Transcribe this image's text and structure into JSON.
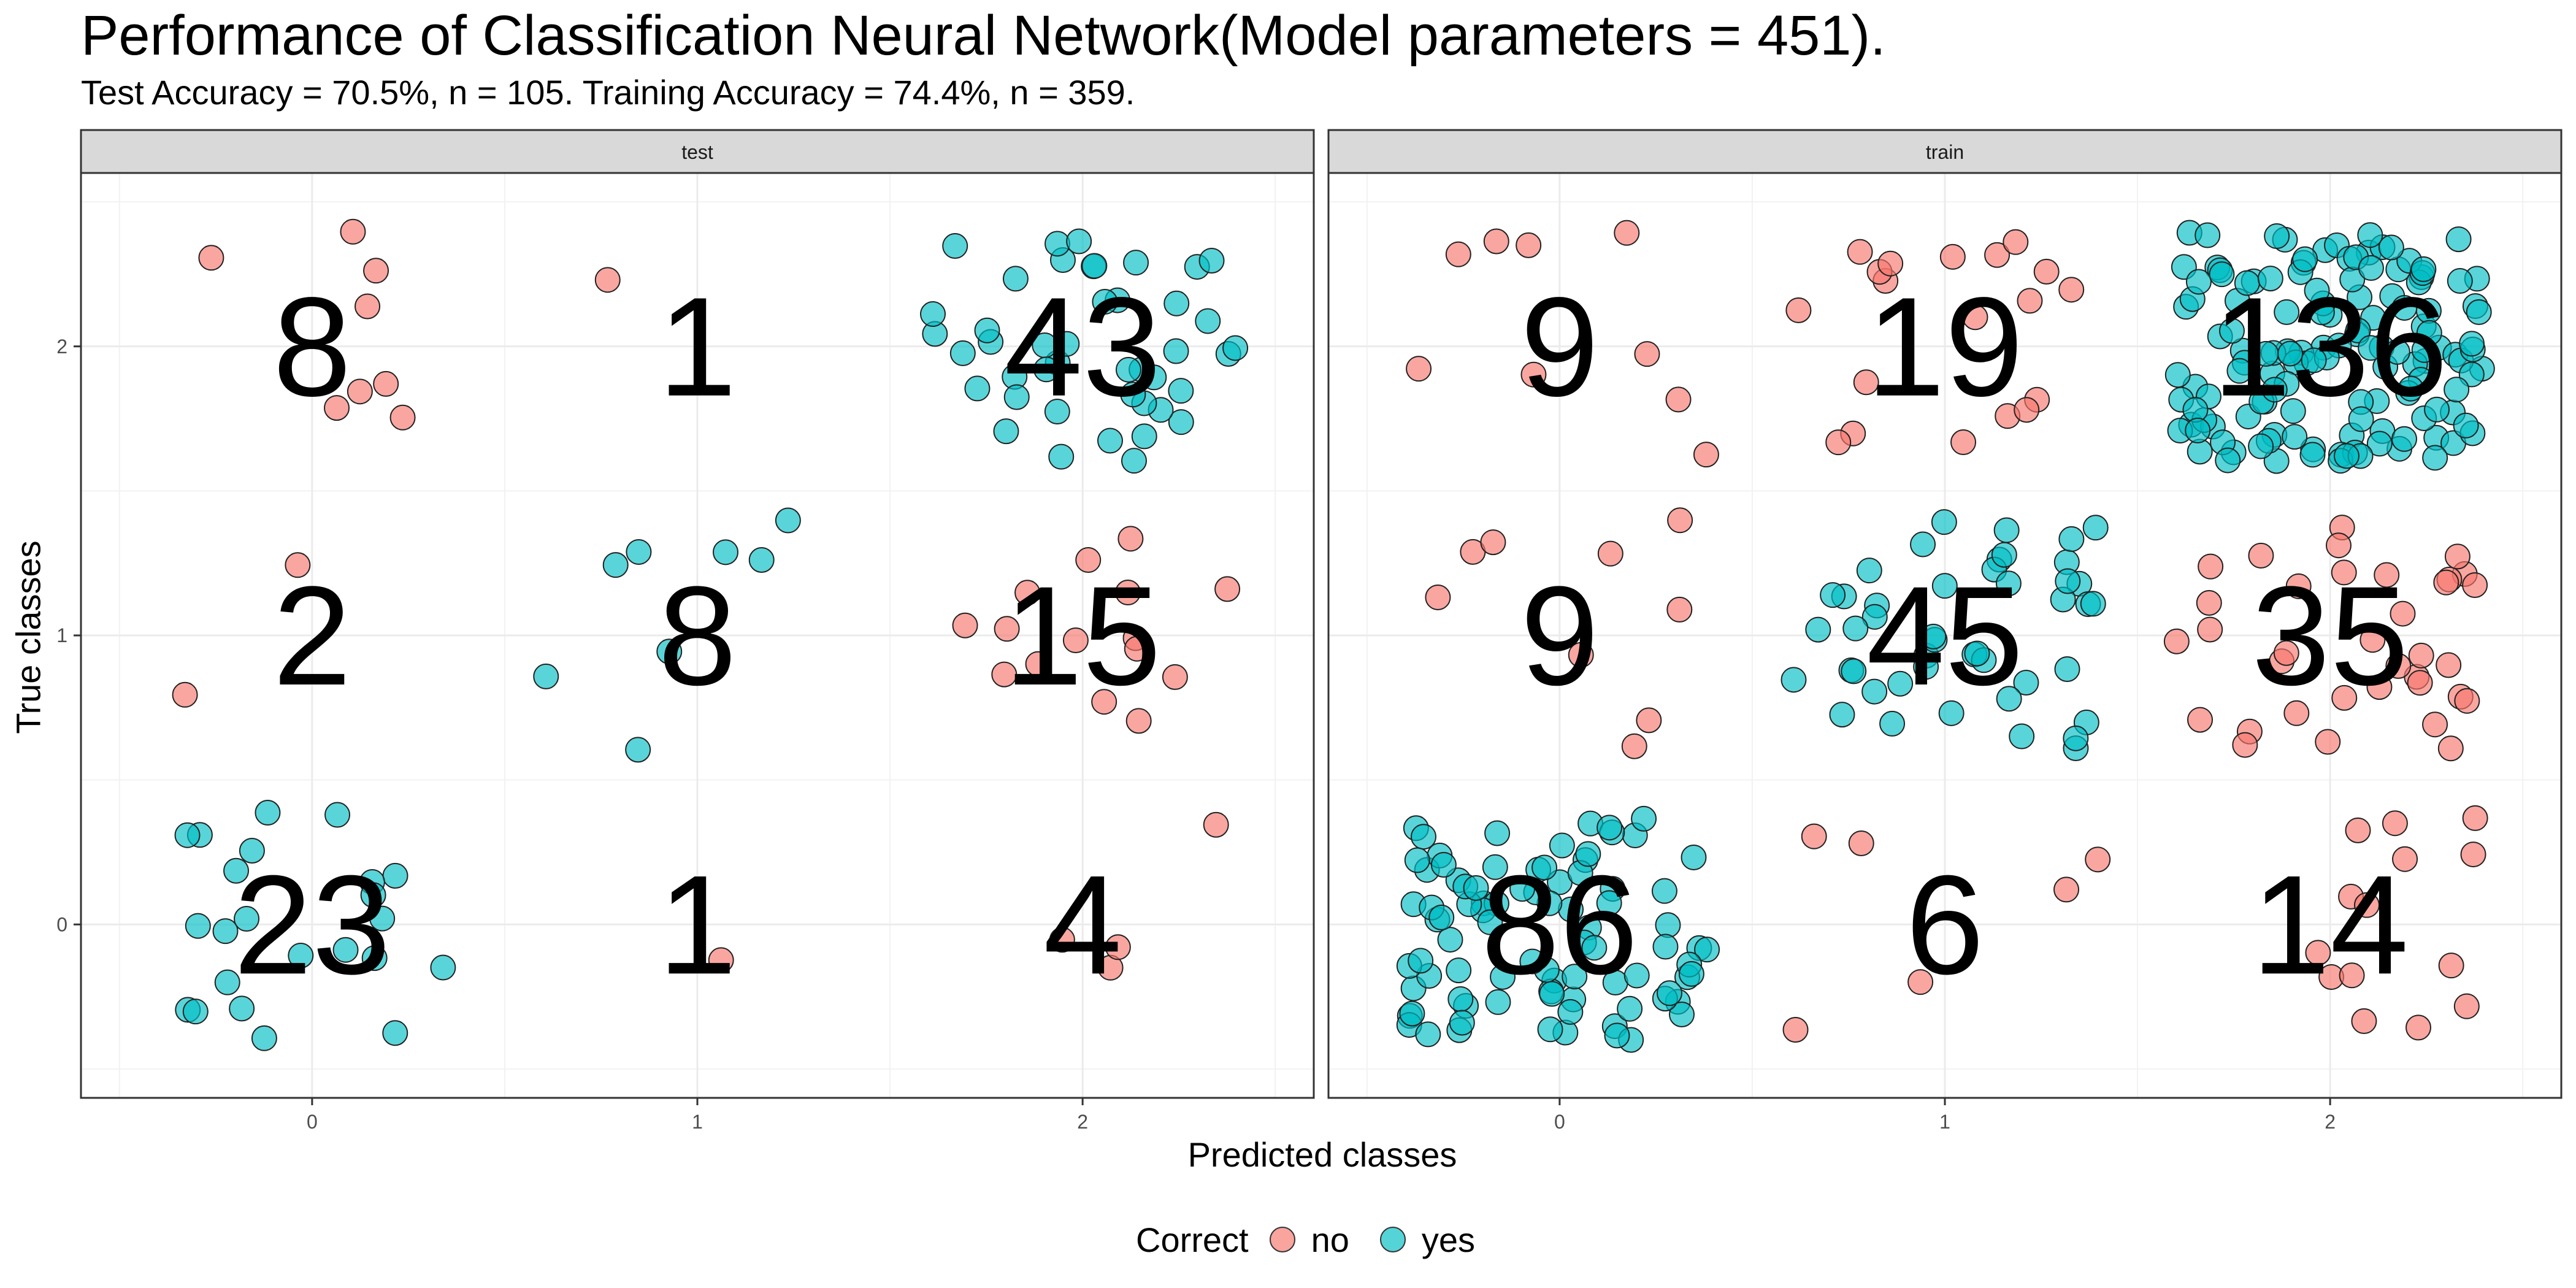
{
  "chart_data": {
    "type": "scatter",
    "title": "Performance of Classification Neural Network(Model parameters = 451).",
    "subtitle": "Test Accuracy = 70.5%, n = 105. Training Accuracy = 74.4%, n = 359.",
    "xlabel": "Predicted classes",
    "ylabel": "True classes",
    "x_ticks": [
      "0",
      "1",
      "2"
    ],
    "y_ticks": [
      "0",
      "1",
      "2"
    ],
    "xlim": [
      -0.6,
      2.6
    ],
    "ylim": [
      -0.6,
      2.6
    ],
    "grid": true,
    "legend": {
      "title": "Correct",
      "position": "bottom",
      "entries": [
        {
          "label": "no",
          "color": "#F8766D"
        },
        {
          "label": "yes",
          "color": "#00BFC4"
        }
      ]
    },
    "panels": [
      {
        "name": "test",
        "counts": [
          {
            "pred": 0,
            "true": 2,
            "n": 8
          },
          {
            "pred": 1,
            "true": 2,
            "n": 1
          },
          {
            "pred": 2,
            "true": 2,
            "n": 43
          },
          {
            "pred": 0,
            "true": 1,
            "n": 2
          },
          {
            "pred": 1,
            "true": 1,
            "n": 8
          },
          {
            "pred": 2,
            "true": 1,
            "n": 15
          },
          {
            "pred": 0,
            "true": 0,
            "n": 23
          },
          {
            "pred": 1,
            "true": 0,
            "n": 1
          },
          {
            "pred": 2,
            "true": 0,
            "n": 4
          }
        ]
      },
      {
        "name": "train",
        "counts": [
          {
            "pred": 0,
            "true": 2,
            "n": 9
          },
          {
            "pred": 1,
            "true": 2,
            "n": 19
          },
          {
            "pred": 2,
            "true": 2,
            "n": 136
          },
          {
            "pred": 0,
            "true": 1,
            "n": 9
          },
          {
            "pred": 1,
            "true": 1,
            "n": 45
          },
          {
            "pred": 2,
            "true": 1,
            "n": 35
          },
          {
            "pred": 0,
            "true": 0,
            "n": 86
          },
          {
            "pred": 1,
            "true": 0,
            "n": 6
          },
          {
            "pred": 2,
            "true": 0,
            "n": 14
          }
        ]
      }
    ]
  }
}
